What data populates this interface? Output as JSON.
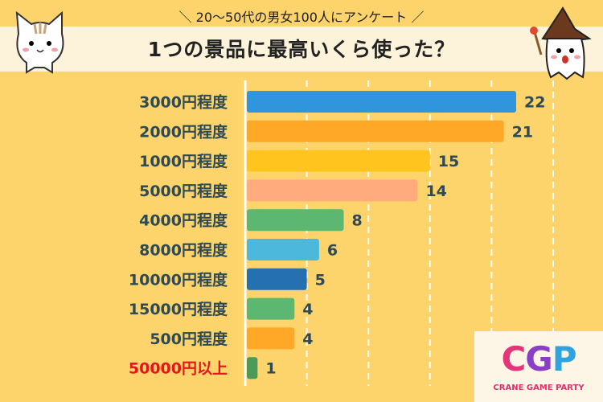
{
  "header": {
    "subtitle": "＼ 20〜50代の男女100人にアンケート ／",
    "title": "1つの景品に最高いくら使った？"
  },
  "logo": {
    "mark_c": "C",
    "mark_g": "G",
    "mark_p": "P",
    "name": "CRANE GAME PARTY"
  },
  "chart_data": {
    "type": "bar",
    "orientation": "horizontal",
    "title": "1つの景品に最高いくら使った？",
    "subtitle": "20〜50代の男女100人にアンケート",
    "categories": [
      "3000円程度",
      "2000円程度",
      "1000円程度",
      "5000円程度",
      "4000円程度",
      "8000円程度",
      "10000円程度",
      "15000円程度",
      "500円程度",
      "50000円以上"
    ],
    "values": [
      22,
      21,
      15,
      14,
      8,
      6,
      5,
      4,
      4,
      1
    ],
    "colors": [
      "#2f95dd",
      "#ffa726",
      "#ffc41d",
      "#ffab7e",
      "#5cb870",
      "#4bb8dc",
      "#2470b0",
      "#5cb870",
      "#ffa726",
      "#4a9a5a"
    ],
    "label_colors": [
      "#2e4a55",
      "#2e4a55",
      "#2e4a55",
      "#2e4a55",
      "#2e4a55",
      "#2e4a55",
      "#2e4a55",
      "#2e4a55",
      "#2e4a55",
      "#e8141c"
    ],
    "xlim": [
      0,
      25
    ],
    "grid": true,
    "grid_step": 5
  }
}
